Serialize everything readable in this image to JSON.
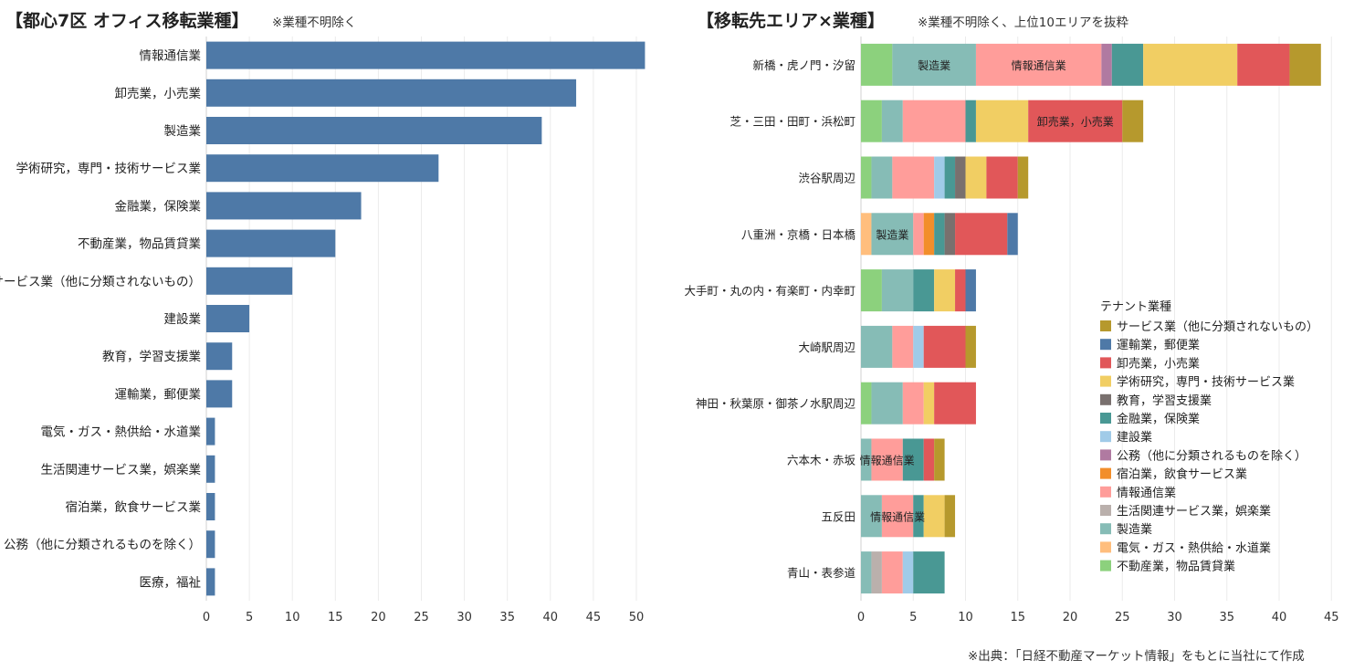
{
  "left": {
    "title": "【都心7区 オフィス移転業種】",
    "note": "※業種不明除く"
  },
  "right": {
    "title": "【移転先エリア×業種】",
    "note": "※業種不明除く、上位10エリアを抜粋"
  },
  "source": "※出典：「日経不動産マーケット情報」をもとに当社にて作成",
  "legend_title": "テナント業種",
  "chart_data": [
    {
      "type": "bar",
      "orientation": "horizontal",
      "title": "【都心7区 オフィス移転業種】",
      "categories": [
        "情報通信業",
        "卸売業，小売業",
        "製造業",
        "学術研究，専門・技術サービス業",
        "金融業，保険業",
        "不動産業，物品賃貸業",
        "サービス業（他に分類されないもの）",
        "建設業",
        "教育，学習支援業",
        "運輸業，郵便業",
        "電気・ガス・熱供給・水道業",
        "生活関連サービス業，娯楽業",
        "宿泊業，飲食サービス業",
        "公務（他に分類されるものを除く）",
        "医療，福祉"
      ],
      "values": [
        51,
        43,
        39,
        27,
        18,
        15,
        10,
        5,
        3,
        3,
        1,
        1,
        1,
        1,
        1
      ],
      "color": "#4e79a7",
      "xlim": [
        0,
        52
      ],
      "xticks": [
        0,
        5,
        10,
        15,
        20,
        25,
        30,
        35,
        40,
        45,
        50
      ],
      "grid": "vertical"
    },
    {
      "type": "bar",
      "orientation": "horizontal",
      "stacked": true,
      "title": "【移転先エリア×業種】",
      "categories": [
        "新橋・虎ノ門・汐留",
        "芝・三田・田町・浜松町",
        "渋谷駅周辺",
        "八重洲・京橋・日本橋",
        "大手町・丸の内・有楽町・内幸町",
        "大崎駅周辺",
        "神田・秋葉原・御茶ノ水駅周辺",
        "六本木・赤坂",
        "五反田",
        "青山・表参道"
      ],
      "series": [
        {
          "name": "不動産業，物品賃貸業",
          "color": "#8cd17d",
          "values": [
            3,
            2,
            1,
            0,
            2,
            0,
            1,
            0,
            0,
            0
          ]
        },
        {
          "name": "電気・ガス・熱供給・水道業",
          "color": "#ffbe7d",
          "values": [
            0,
            0,
            0,
            1,
            0,
            0,
            0,
            0,
            0,
            0
          ]
        },
        {
          "name": "製造業",
          "color": "#86bcb6",
          "values": [
            8,
            2,
            2,
            4,
            3,
            3,
            3,
            1,
            2,
            1
          ]
        },
        {
          "name": "生活関連サービス業，娯楽業",
          "color": "#bab0ac",
          "values": [
            0,
            0,
            0,
            0,
            0,
            0,
            0,
            0,
            0,
            1
          ]
        },
        {
          "name": "情報通信業",
          "color": "#ff9d9a",
          "values": [
            12,
            6,
            4,
            1,
            0,
            2,
            2,
            3,
            3,
            2
          ]
        },
        {
          "name": "宿泊業，飲食サービス業",
          "color": "#f28e2b",
          "values": [
            0,
            0,
            0,
            1,
            0,
            0,
            0,
            0,
            0,
            0
          ]
        },
        {
          "name": "公務（他に分類されるものを除く）",
          "color": "#b07aa1",
          "values": [
            1,
            0,
            0,
            0,
            0,
            0,
            0,
            0,
            0,
            0
          ]
        },
        {
          "name": "建設業",
          "color": "#a0cbe8",
          "values": [
            0,
            0,
            1,
            0,
            0,
            1,
            0,
            0,
            0,
            1
          ]
        },
        {
          "name": "金融業，保険業",
          "color": "#499894",
          "values": [
            3,
            1,
            1,
            1,
            2,
            0,
            0,
            2,
            1,
            3
          ]
        },
        {
          "name": "教育，学習支援業",
          "color": "#79706e",
          "values": [
            0,
            0,
            1,
            1,
            0,
            0,
            0,
            0,
            0,
            0
          ]
        },
        {
          "name": "学術研究，専門・技術サービス業",
          "color": "#f1ce63",
          "values": [
            9,
            5,
            2,
            0,
            2,
            0,
            1,
            0,
            2,
            0
          ]
        },
        {
          "name": "卸売業，小売業",
          "color": "#e15759",
          "values": [
            5,
            9,
            3,
            5,
            1,
            4,
            4,
            1,
            0,
            0
          ]
        },
        {
          "name": "運輸業，郵便業",
          "color": "#4e79a7",
          "values": [
            0,
            0,
            0,
            1,
            1,
            0,
            0,
            0,
            0,
            0
          ]
        },
        {
          "name": "サービス業（他に分類されないもの）",
          "color": "#b6992d",
          "values": [
            3,
            2,
            1,
            0,
            0,
            1,
            0,
            1,
            1,
            0
          ]
        }
      ],
      "inline_labels": [
        {
          "category": "新橋・虎ノ門・汐留",
          "series": "製造業",
          "text": "製造業"
        },
        {
          "category": "新橋・虎ノ門・汐留",
          "series": "情報通信業",
          "text": "情報通信業"
        },
        {
          "category": "芝・三田・田町・浜松町",
          "series": "卸売業，小売業",
          "text": "卸売業，小売業"
        },
        {
          "category": "八重洲・京橋・日本橋",
          "series": "製造業",
          "text": "製造業"
        },
        {
          "category": "六本木・赤坂",
          "series": "情報通信業",
          "text": "情報通信業"
        },
        {
          "category": "五反田",
          "series": "情報通信業",
          "text": "情報通信業"
        }
      ],
      "xlim": [
        0,
        45.5
      ],
      "xticks": [
        0,
        5,
        10,
        15,
        20,
        25,
        30,
        35,
        40,
        45
      ],
      "legend_order": [
        "サービス業（他に分類されないもの）",
        "運輸業，郵便業",
        "卸売業，小売業",
        "学術研究，専門・技術サービス業",
        "教育，学習支援業",
        "金融業，保険業",
        "建設業",
        "公務（他に分類されるものを除く）",
        "宿泊業，飲食サービス業",
        "情報通信業",
        "生活関連サービス業，娯楽業",
        "製造業",
        "電気・ガス・熱供給・水道業",
        "不動産業，物品賃貸業"
      ],
      "legend_position": "right"
    }
  ]
}
